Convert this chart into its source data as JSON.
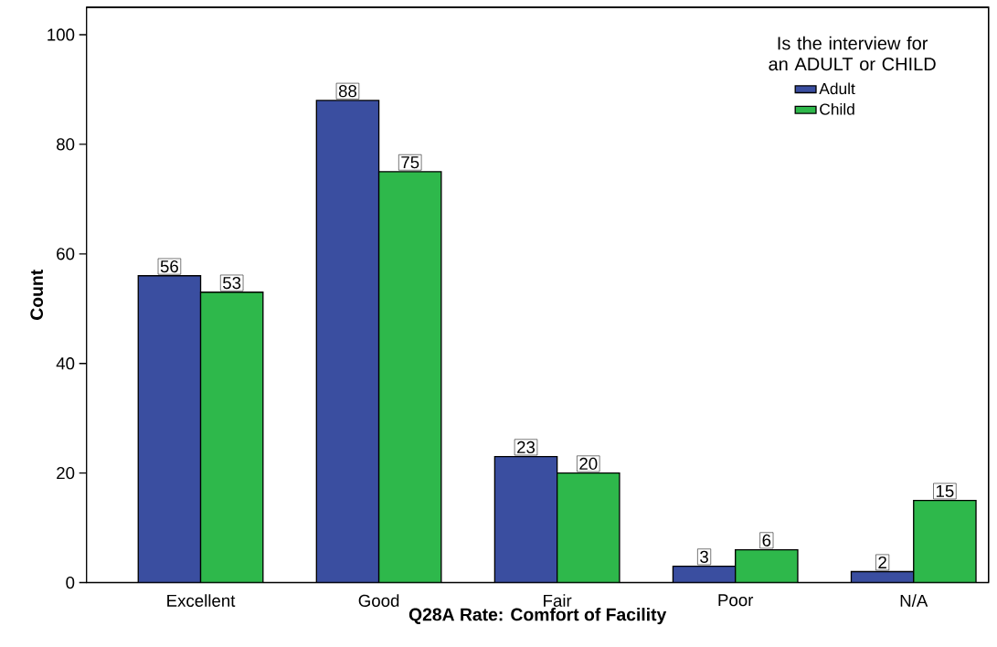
{
  "chart_data": {
    "type": "bar",
    "xlabel": "Q28A Rate: Comfort of Facility",
    "ylabel": "Count",
    "legend_title": "Is the interview for an ADULT or CHILD",
    "categories": [
      "Excellent",
      "Good",
      "Fair",
      "Poor",
      "N/A"
    ],
    "series": [
      {
        "name": "Adult",
        "color": "#3a4ea0",
        "values": [
          56,
          88,
          23,
          3,
          2
        ]
      },
      {
        "name": "Child",
        "color": "#2eb84b",
        "values": [
          53,
          75,
          20,
          6,
          15
        ]
      }
    ],
    "ylim": [
      0,
      105
    ],
    "yticks": [
      0,
      20,
      40,
      60,
      80,
      100
    ],
    "data_labels": true,
    "legend": "top right",
    "grid": false
  }
}
